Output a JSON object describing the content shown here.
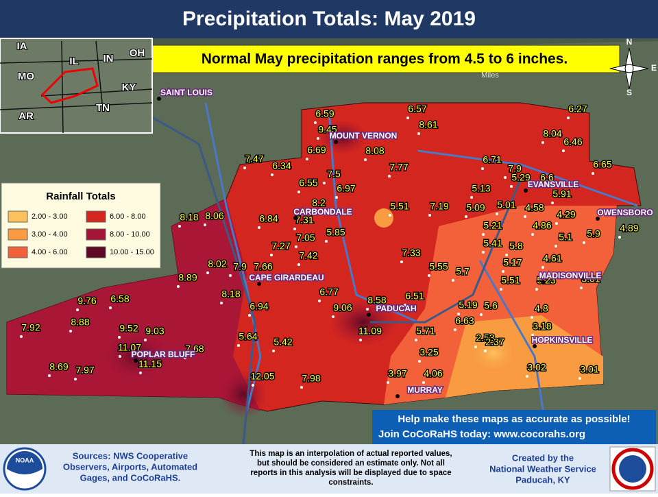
{
  "header": {
    "title": "Precipitation Totals: May 2019"
  },
  "banner": "Normal May precipitation ranges from 4.5 to 6 inches.",
  "scale_unit": "Miles",
  "compass": [
    "N",
    "E",
    "S"
  ],
  "inset": {
    "states": [
      "IA",
      "IL",
      "IN",
      "OH",
      "MO",
      "KY",
      "AR",
      "TN"
    ]
  },
  "legend": {
    "title": "Rainfall Totals",
    "ranges": [
      {
        "label": "2.00 - 3.00",
        "color": "#fdc15c"
      },
      {
        "label": "6.00 - 8.00",
        "color": "#d3261f"
      },
      {
        "label": "3.00 - 4.00",
        "color": "#f99b40"
      },
      {
        "label": "8.00 - 10.00",
        "color": "#a51538"
      },
      {
        "label": "4.00 - 6.00",
        "color": "#f2613a"
      },
      {
        "label": "10.00 - 15.00",
        "color": "#5e0a25"
      }
    ]
  },
  "cities": [
    "SAINT LOUIS",
    "MOUNT VERNON",
    "EVANSVILLE",
    "CARBONDALE",
    "OWENSBORO",
    "MADISONVILLE",
    "CAPE GIRARDEAU",
    "PADUCAH",
    "HOPKINSVILLE",
    "POPLAR BLUFF",
    "MURRAY"
  ],
  "stations": [
    "6.59",
    "6.57",
    "6.27",
    "9.45",
    "8.61",
    "8.04",
    "6.46",
    "6.69",
    "8.08",
    "7.47",
    "6.34",
    "7.77",
    "6.71",
    "7.9",
    "6.65",
    "7.5",
    "6.55",
    "6.97",
    "5.29",
    "6.6",
    "5.13",
    "5.91",
    "8.2",
    "5.51",
    "7.19",
    "5.09",
    "5.01",
    "4.58",
    "4.29",
    "8.18",
    "8.06",
    "6.84",
    "7.31",
    "5.21",
    "4.86",
    "4.89",
    "5.85",
    "7.05",
    "5.1",
    "5.9",
    "7.27",
    "7.42",
    "5.41",
    "5.8",
    "7.33",
    "4.61",
    "8.02",
    "7.9",
    "7.66",
    "5.55",
    "5.7",
    "5.17",
    "8.89",
    "5.51",
    "5.23",
    "3.01",
    "8.18",
    "6.77",
    "6.51",
    "9.76",
    "6.58",
    "6.94",
    "9.06",
    "8.58",
    "5.19",
    "5.6",
    "4.8",
    "6.63",
    "3.18",
    "7.92",
    "8.88",
    "9.52",
    "9.03",
    "11.09",
    "5.71",
    "2.53",
    "2.37",
    "5.64",
    "5.42",
    "11.07",
    "7.68",
    "3.25",
    "8.69",
    "7.97",
    "11.15",
    "3.02",
    "3.01",
    "12.05",
    "7.98",
    "3.97",
    "4.06"
  ],
  "cocorahs": [
    "Help make these maps as accurate as possible!",
    "Join CoCoRaHS today: www.cocorahs.org"
  ],
  "footer": {
    "noaa": "NOAA",
    "sources": [
      "Sources: NWS Cooperative",
      "Observers, Airports, Automated",
      "Gages, and CoCoRaHS."
    ],
    "disclaimer": [
      "This map is an interpolation of actual reported values,",
      "but should be considered an estimate only. Not all",
      "reports in this analysis will be displayed due to space",
      "constraints."
    ],
    "credit": [
      "Created by the",
      "National Weather Service",
      "Paducah, KY"
    ]
  }
}
